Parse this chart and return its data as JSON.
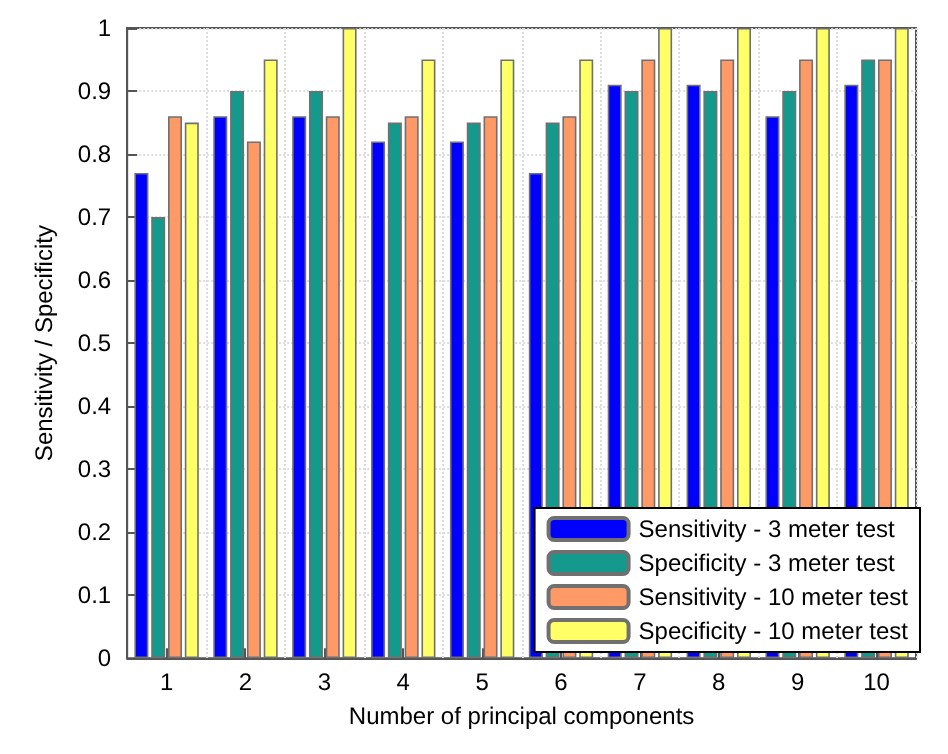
{
  "chart_data": {
    "type": "bar",
    "xlabel": "Number of principal components",
    "ylabel": "Sensitivity / Specificity",
    "categories": [
      "1",
      "2",
      "3",
      "4",
      "5",
      "6",
      "7",
      "8",
      "9",
      "10"
    ],
    "series": [
      {
        "name": "Sensitivity - 3 meter test",
        "color": "#0000ff",
        "values": [
          0.77,
          0.86,
          0.86,
          0.82,
          0.82,
          0.77,
          0.91,
          0.91,
          0.86,
          0.91
        ]
      },
      {
        "name": "Specificity - 3 meter test",
        "color": "#149a8c",
        "values": [
          0.7,
          0.9,
          0.9,
          0.85,
          0.85,
          0.85,
          0.9,
          0.9,
          0.9,
          0.95
        ]
      },
      {
        "name": "Sensitivity - 10 meter test",
        "color": "#ff9966",
        "values": [
          0.86,
          0.82,
          0.86,
          0.86,
          0.86,
          0.86,
          0.95,
          0.95,
          0.95,
          0.95
        ]
      },
      {
        "name": "Specificity - 10 meter test",
        "color": "#ffff66",
        "values": [
          0.85,
          0.95,
          1,
          0.95,
          0.95,
          0.95,
          1,
          1,
          1,
          1
        ]
      }
    ],
    "ylim": [
      0,
      1
    ],
    "yticks": [
      0,
      0.1,
      0.2,
      0.3,
      0.4,
      0.5,
      0.6,
      0.7,
      0.8,
      0.9,
      1
    ],
    "grid": true,
    "legend": "bottom right"
  }
}
